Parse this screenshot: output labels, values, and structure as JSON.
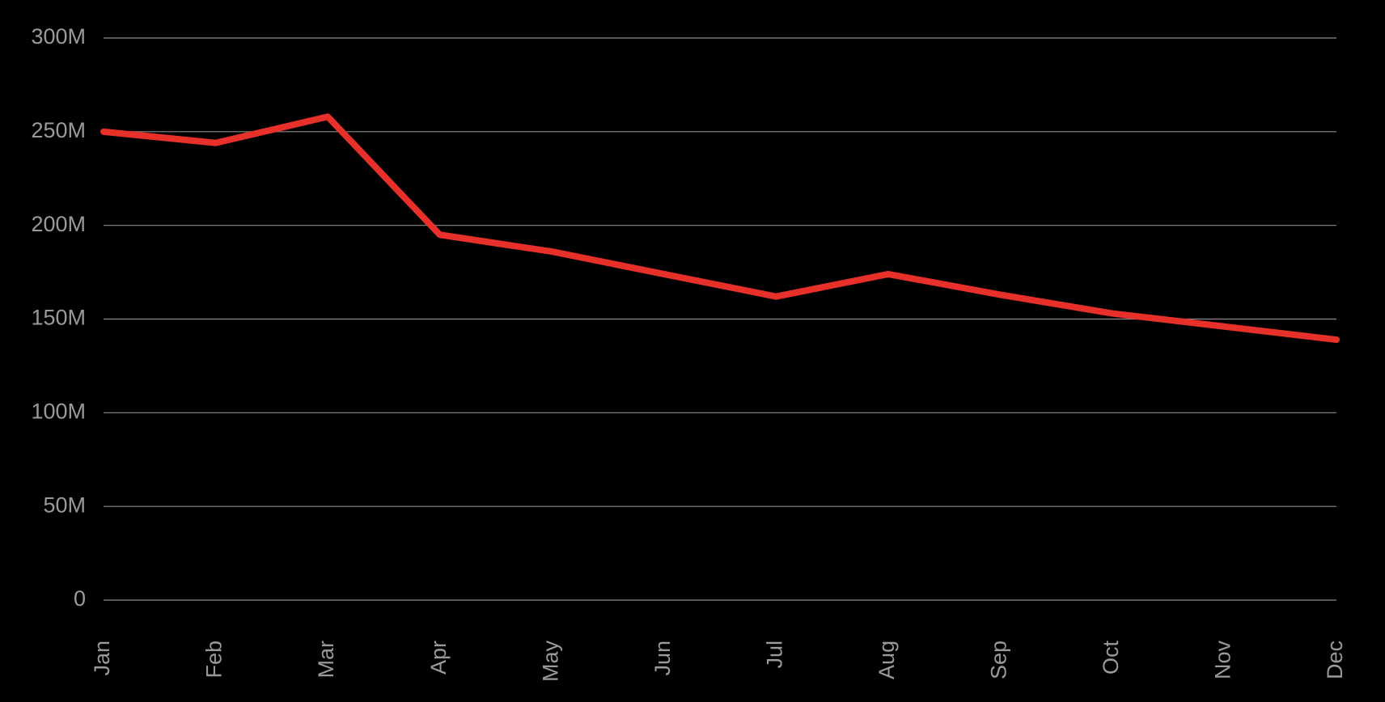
{
  "chart_data": {
    "type": "line",
    "categories": [
      "Jan",
      "Feb",
      "Mar",
      "Apr",
      "May",
      "Jun",
      "Jul",
      "Aug",
      "Sep",
      "Oct",
      "Nov",
      "Dec"
    ],
    "series": [
      {
        "color": "#e8302a",
        "values": [
          250000000,
          244000000,
          258000000,
          195000000,
          186000000,
          174000000,
          162000000,
          174000000,
          163000000,
          153000000,
          146000000,
          139000000
        ]
      }
    ],
    "ylim": [
      0,
      300000000
    ],
    "yticks": [
      0,
      {
        "value": 50000000,
        "label": "50M"
      },
      {
        "value": 100000000,
        "label": "100M"
      },
      {
        "value": 150000000,
        "label": "150M"
      },
      {
        "value": 200000000,
        "label": "200M"
      },
      {
        "value": 250000000,
        "label": "250M"
      },
      {
        "value": 300000000,
        "label": "300M"
      }
    ],
    "grid": true
  }
}
